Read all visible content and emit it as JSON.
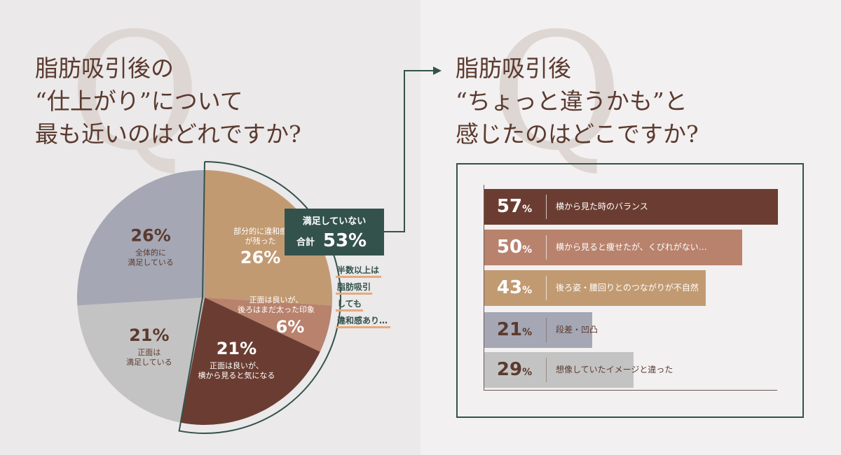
{
  "left": {
    "title_lines": [
      "脂肪吸引後の",
      "“仕上がり”について",
      "最も近いのはどれですか?"
    ],
    "callout": {
      "line1": "満足していない",
      "prefix": "合計",
      "value": "53%"
    },
    "note_lines": [
      "半数以上は",
      "脂肪吸引",
      "しても",
      "違和感あり…"
    ]
  },
  "right": {
    "title_lines": [
      "脂肪吸引後",
      "“ちょっと違うかも”と",
      "感じたのはどこですか?"
    ]
  },
  "chart_data": [
    {
      "type": "pie",
      "start_angle_deg": 0,
      "direction": "clockwise",
      "slices": [
        {
          "value": 26,
          "label_lines": [
            "部分的に違和感",
            "が残った"
          ],
          "color": "#c29a72",
          "text_color": "#ffffff"
        },
        {
          "value": 6,
          "label_lines": [
            "正面は良いが、",
            "後ろはまだ太った印象"
          ],
          "color": "#b8826d",
          "text_color": "#ffffff"
        },
        {
          "value": 21,
          "label_lines": [
            "正面は良いが、",
            "横から見ると気になる"
          ],
          "color": "#6b3d32",
          "text_color": "#ffffff"
        },
        {
          "value": 21,
          "label_lines": [
            "正面は",
            "満足している"
          ],
          "color": "#c4c3c3",
          "text_color": "#5b3a2f"
        },
        {
          "value": 26,
          "label_lines": [
            "全体的に",
            "満足している"
          ],
          "color": "#a5a7b4",
          "text_color": "#5b3a2f"
        }
      ],
      "highlight_group_total": 53
    },
    {
      "type": "bar",
      "orientation": "horizontal",
      "xlim": [
        0,
        60
      ],
      "bars": [
        {
          "value": 57,
          "label": "横から見た時のバランス",
          "color": "#6b3d32",
          "text_color": "#ffffff"
        },
        {
          "value": 50,
          "label": "横から見ると痩せたが、くびれがない…",
          "color": "#b8826d",
          "text_color": "#ffffff"
        },
        {
          "value": 43,
          "label": "後ろ姿・腰回りとのつながりが不自然",
          "color": "#c29a72",
          "text_color": "#ffffff"
        },
        {
          "value": 21,
          "label": "段差・凹凸",
          "color": "#a5a7b4",
          "text_color": "#5b3a2f"
        },
        {
          "value": 29,
          "label": "想像していたイメージと違った",
          "color": "#c4c3c3",
          "text_color": "#5b3a2f"
        }
      ]
    }
  ],
  "colors": {
    "accent_green": "#34524c",
    "text_brown": "#5b3a2f",
    "underline_orange": "#e7a97e"
  }
}
